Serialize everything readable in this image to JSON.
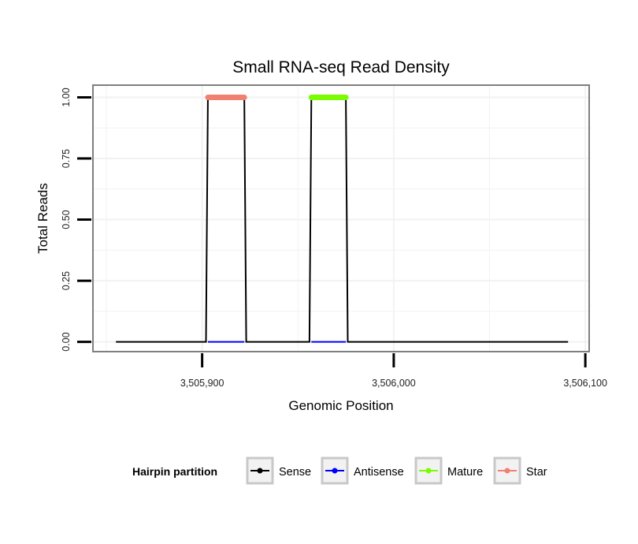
{
  "chart_data": {
    "type": "line",
    "title": "Small RNA-seq Read Density",
    "xlabel": "Genomic Position",
    "ylabel": "Total Reads",
    "xlim": [
      3505843,
      3506102
    ],
    "ylim": [
      -0.04,
      1.05
    ],
    "x_ticks": [
      {
        "value": 3505900,
        "label": "3,505,900"
      },
      {
        "value": 3506000,
        "label": "3,506,000"
      },
      {
        "value": 3506100,
        "label": "3,506,100"
      }
    ],
    "y_ticks": [
      {
        "value": 0,
        "label": "0.00"
      },
      {
        "value": 0.25,
        "label": "0.25"
      },
      {
        "value": 0.5,
        "label": "0.50"
      },
      {
        "value": 0.75,
        "label": "0.75"
      },
      {
        "value": 1.0,
        "label": "1.00"
      }
    ],
    "grid": true,
    "legend": {
      "title": "Hairpin partition",
      "position": "bottom",
      "entries": [
        {
          "name": "Sense",
          "color": "#000000"
        },
        {
          "name": "Antisense",
          "color": "#0000ff"
        },
        {
          "name": "Mature",
          "color": "#7cfc00"
        },
        {
          "name": "Star",
          "color": "#f08070"
        }
      ]
    },
    "series": [
      {
        "name": "Sense",
        "color": "#000000",
        "points": [
          [
            3505855,
            0
          ],
          [
            3505902,
            0
          ],
          [
            3505903,
            1
          ],
          [
            3505922,
            1
          ],
          [
            3505923,
            0
          ],
          [
            3505956,
            0
          ],
          [
            3505957,
            1
          ],
          [
            3505975,
            1
          ],
          [
            3505976,
            0
          ],
          [
            3506091,
            0
          ]
        ]
      },
      {
        "name": "Antisense",
        "color": "#0000ff",
        "points": [
          [
            3505903,
            0
          ],
          [
            3505922,
            0
          ],
          [
            3505957,
            0
          ],
          [
            3505975,
            0
          ]
        ]
      },
      {
        "name": "Star",
        "color": "#f08070",
        "points": [
          [
            3505903,
            1
          ],
          [
            3505922,
            1
          ]
        ]
      },
      {
        "name": "Mature",
        "color": "#7cfc00",
        "points": [
          [
            3505957,
            1
          ],
          [
            3505975,
            1
          ]
        ]
      }
    ]
  }
}
